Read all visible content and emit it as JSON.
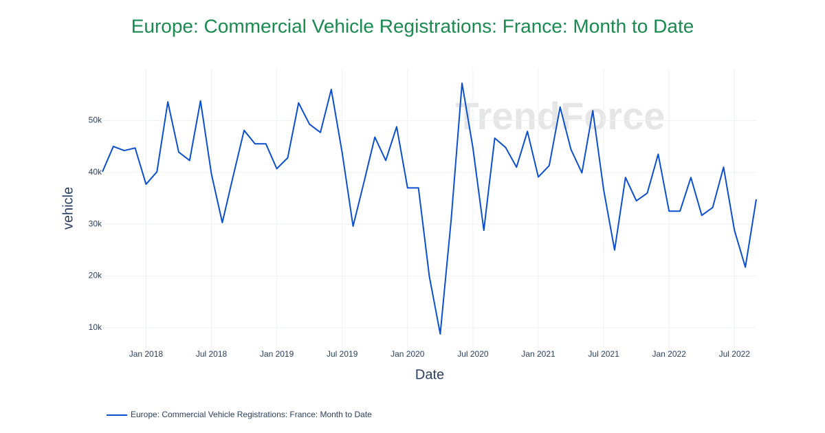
{
  "chart_data": {
    "type": "line",
    "title": "Europe: Commercial Vehicle Registrations: France: Month to Date",
    "x_label": "Date",
    "y_label": "vehicle",
    "watermark": "TrendForce",
    "x": [
      "2017-09",
      "2017-10",
      "2017-11",
      "2017-12",
      "2018-01",
      "2018-02",
      "2018-03",
      "2018-04",
      "2018-05",
      "2018-06",
      "2018-07",
      "2018-08",
      "2018-09",
      "2018-10",
      "2018-11",
      "2018-12",
      "2019-01",
      "2019-02",
      "2019-03",
      "2019-04",
      "2019-05",
      "2019-06",
      "2019-07",
      "2019-08",
      "2019-09",
      "2019-10",
      "2019-11",
      "2019-12",
      "2020-01",
      "2020-02",
      "2020-03",
      "2020-04",
      "2020-05",
      "2020-06",
      "2020-07",
      "2020-08",
      "2020-09",
      "2020-10",
      "2020-11",
      "2020-12",
      "2021-01",
      "2021-02",
      "2021-03",
      "2021-04",
      "2021-05",
      "2021-06",
      "2021-07",
      "2021-08",
      "2021-09",
      "2021-10",
      "2021-11",
      "2021-12",
      "2022-01",
      "2022-02",
      "2022-03",
      "2022-04",
      "2022-05",
      "2022-06",
      "2022-07",
      "2022-08",
      "2022-09"
    ],
    "series": [
      {
        "name": "Europe: Commercial Vehicle Registrations: France: Month to Date",
        "color": "#0a4fcf",
        "values": [
          40100,
          45000,
          44200,
          44700,
          37700,
          40100,
          53600,
          43900,
          42300,
          53800,
          39700,
          30300,
          39300,
          48100,
          45500,
          45500,
          40700,
          42800,
          53400,
          49300,
          47700,
          56000,
          43800,
          29600,
          38100,
          46800,
          42300,
          48800,
          37000,
          37000,
          19900,
          8800,
          30800,
          57200,
          44700,
          28800,
          46600,
          44800,
          41000,
          47900,
          39100,
          41300,
          52600,
          44400,
          39900,
          51900,
          36600,
          25000,
          39000,
          34500,
          36000,
          43500,
          32500,
          32500,
          39000,
          31700,
          33200,
          41000,
          28800,
          21700,
          34800
        ]
      }
    ],
    "xlim": [
      "2017-09",
      "2022-09"
    ],
    "xticks": [
      {
        "value": "2018-01",
        "label": "Jan 2018"
      },
      {
        "value": "2018-07",
        "label": "Jul 2018"
      },
      {
        "value": "2019-01",
        "label": "Jan 2019"
      },
      {
        "value": "2019-07",
        "label": "Jul 2019"
      },
      {
        "value": "2020-01",
        "label": "Jan 2020"
      },
      {
        "value": "2020-07",
        "label": "Jul 2020"
      },
      {
        "value": "2021-01",
        "label": "Jan 2021"
      },
      {
        "value": "2021-07",
        "label": "Jul 2021"
      },
      {
        "value": "2022-01",
        "label": "Jan 2022"
      },
      {
        "value": "2022-07",
        "label": "Jul 2022"
      }
    ],
    "ylim": [
      6000,
      60000
    ],
    "yticks": [
      {
        "value": 10000,
        "label": "10k"
      },
      {
        "value": 20000,
        "label": "20k"
      },
      {
        "value": 30000,
        "label": "30k"
      },
      {
        "value": 40000,
        "label": "40k"
      },
      {
        "value": 50000,
        "label": "50k"
      }
    ],
    "grid": true
  }
}
